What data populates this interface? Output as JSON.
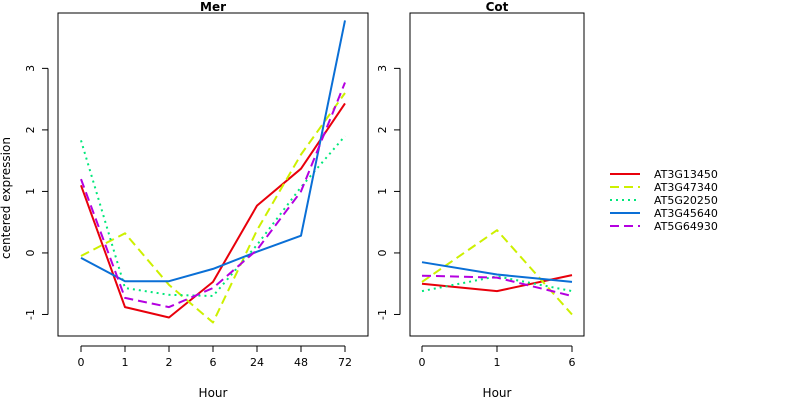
{
  "chart_data": {
    "type": "line",
    "ylabel": "centered expression",
    "xlabel": "Hour",
    "ylim": [
      -1.35,
      3.9
    ],
    "yticks": [
      -1,
      0,
      1,
      2,
      3
    ],
    "grid": false,
    "legend_position": "right",
    "series_styles": [
      {
        "color": "#e8000b",
        "dash": "solid"
      },
      {
        "color": "#cdf000",
        "dash": "dashed"
      },
      {
        "color": "#00e77a",
        "dash": "dotted"
      },
      {
        "color": "#0a6fd6",
        "dash": "solid"
      },
      {
        "color": "#b400e0",
        "dash": "dashed"
      }
    ],
    "panels": [
      {
        "title": "Mer",
        "categories": [
          "0",
          "1",
          "2",
          "6",
          "24",
          "48",
          "72"
        ],
        "series": [
          {
            "name": "AT3G13450",
            "values": [
              1.1,
              -0.88,
              -1.05,
              -0.47,
              0.77,
              1.37,
              2.43
            ]
          },
          {
            "name": "AT3G47340",
            "values": [
              -0.05,
              0.32,
              -0.52,
              -1.13,
              0.37,
              1.6,
              2.6
            ]
          },
          {
            "name": "AT5G20250",
            "values": [
              1.83,
              -0.57,
              -0.68,
              -0.7,
              0.13,
              1.07,
              1.9
            ]
          },
          {
            "name": "AT3G45640",
            "values": [
              -0.08,
              -0.46,
              -0.46,
              -0.26,
              0.02,
              0.28,
              3.78
            ]
          },
          {
            "name": "AT5G64930",
            "values": [
              1.2,
              -0.73,
              -0.88,
              -0.57,
              0.05,
              1.0,
              2.77
            ]
          }
        ]
      },
      {
        "title": "Cot",
        "categories": [
          "0",
          "1",
          "6"
        ],
        "series": [
          {
            "name": "AT3G13450",
            "values": [
              -0.5,
              -0.62,
              -0.36
            ]
          },
          {
            "name": "AT3G47340",
            "values": [
              -0.47,
              0.37,
              -1.0
            ]
          },
          {
            "name": "AT5G20250",
            "values": [
              -0.62,
              -0.38,
              -0.62
            ]
          },
          {
            "name": "AT3G45640",
            "values": [
              -0.15,
              -0.35,
              -0.47
            ]
          },
          {
            "name": "AT5G64930",
            "values": [
              -0.37,
              -0.4,
              -0.7
            ]
          }
        ]
      }
    ]
  }
}
